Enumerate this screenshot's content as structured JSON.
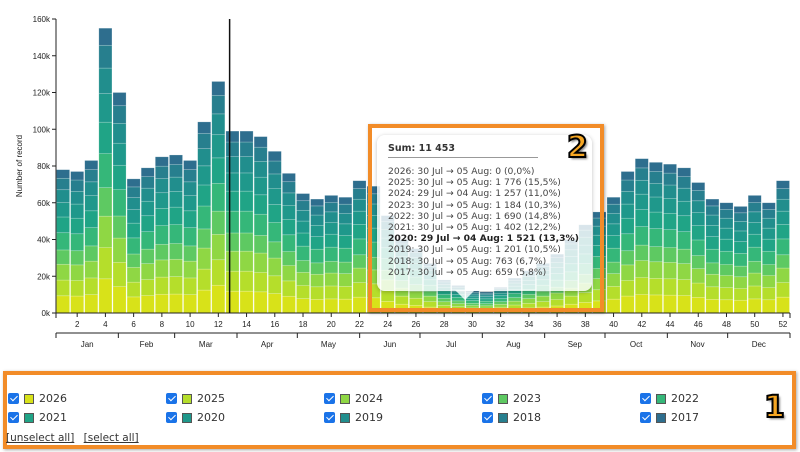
{
  "chart_data": {
    "type": "bar",
    "stacked": true,
    "title": "",
    "xlabel": "",
    "ylabel": "Number of record",
    "ylim": [
      0,
      160000
    ],
    "y_ticks": [
      "0k",
      "20k",
      "40k",
      "60k",
      "80k",
      "100k",
      "120k",
      "140k",
      "160k"
    ],
    "x_ticks": [
      "2",
      "4",
      "6",
      "8",
      "10",
      "12",
      "14",
      "16",
      "18",
      "20",
      "22",
      "24",
      "26",
      "28",
      "30",
      "32",
      "34",
      "36",
      "38",
      "40",
      "42",
      "44",
      "46",
      "48",
      "50",
      "52"
    ],
    "months": [
      "Jan",
      "Feb",
      "Mar",
      "Apr",
      "May",
      "Jun",
      "Jul",
      "Aug",
      "Sep",
      "Oct",
      "Nov",
      "Dec"
    ],
    "categories": [
      1,
      2,
      3,
      4,
      5,
      6,
      7,
      8,
      9,
      10,
      11,
      12,
      13,
      14,
      15,
      16,
      17,
      18,
      19,
      20,
      21,
      22,
      23,
      24,
      25,
      26,
      27,
      28,
      29,
      30,
      31,
      32,
      33,
      34,
      35,
      36,
      37,
      38,
      39,
      40,
      41,
      42,
      43,
      44,
      45,
      46,
      47,
      48,
      49,
      50,
      51,
      52
    ],
    "totals_k": [
      78,
      77,
      83,
      155,
      120,
      73,
      79,
      85,
      86,
      83,
      104,
      126,
      99,
      99,
      96,
      88,
      76,
      65,
      62,
      64,
      63,
      72,
      69,
      53,
      40,
      35,
      27,
      18,
      15,
      12,
      11.5,
      14,
      19,
      23,
      27,
      32,
      40,
      48,
      55,
      63,
      77,
      84,
      82,
      81,
      79,
      71,
      62,
      60,
      58,
      64,
      60,
      72
    ],
    "series_order_bottom_to_top": [
      "2026",
      "2025",
      "2024",
      "2023",
      "2022",
      "2021",
      "2020",
      "2019",
      "2018",
      "2017"
    ],
    "vertical_marker_week": 13,
    "grid": false,
    "legend_position": "bottom"
  },
  "series_colors": {
    "2026": "#d8e219",
    "2025": "#b5de2b",
    "2024": "#8fd744",
    "2023": "#5ec962",
    "2022": "#35b779",
    "2021": "#20a486",
    "2020": "#1f988b",
    "2019": "#218e8d",
    "2018": "#277f8e",
    "2017": "#2e6e8e"
  },
  "tooltip": {
    "sum": "Sum: 11 453",
    "rows": [
      {
        "text": "2026: 30 Jul → 05 Aug: 0 (0,0%)",
        "bold": false
      },
      {
        "text": "2025: 30 Jul → 05 Aug: 1 776 (15,5%)",
        "bold": false
      },
      {
        "text": "2024: 29 Jul → 04 Aug: 1 257 (11,0%)",
        "bold": false
      },
      {
        "text": "2023: 30 Jul → 05 Aug: 1 184 (10,3%)",
        "bold": false
      },
      {
        "text": "2022: 30 Jul → 05 Aug: 1 690 (14,8%)",
        "bold": false
      },
      {
        "text": "2021: 30 Jul → 05 Aug: 1 402 (12,2%)",
        "bold": false
      },
      {
        "text": "2020: 29 Jul → 04 Aug: 1 521 (13,3%)",
        "bold": true
      },
      {
        "text": "2019: 30 Jul → 05 Aug: 1 201 (10,5%)",
        "bold": false
      },
      {
        "text": "2018: 30 Jul → 05 Aug: 763 (6,7%)",
        "bold": false
      },
      {
        "text": "2017: 30 Jul → 05 Aug: 659 (5,8%)",
        "bold": false
      }
    ]
  },
  "annotations": {
    "badge_1": "1",
    "badge_2": "2",
    "accent_color": "#f28c28"
  },
  "legend": {
    "rows": [
      [
        "2026",
        "2025",
        "2024",
        "2023",
        "2022"
      ],
      [
        "2021",
        "2020",
        "2019",
        "2018",
        "2017"
      ]
    ],
    "checked": true,
    "unselect_all": "[unselect all]",
    "select_all": "[select all]"
  }
}
